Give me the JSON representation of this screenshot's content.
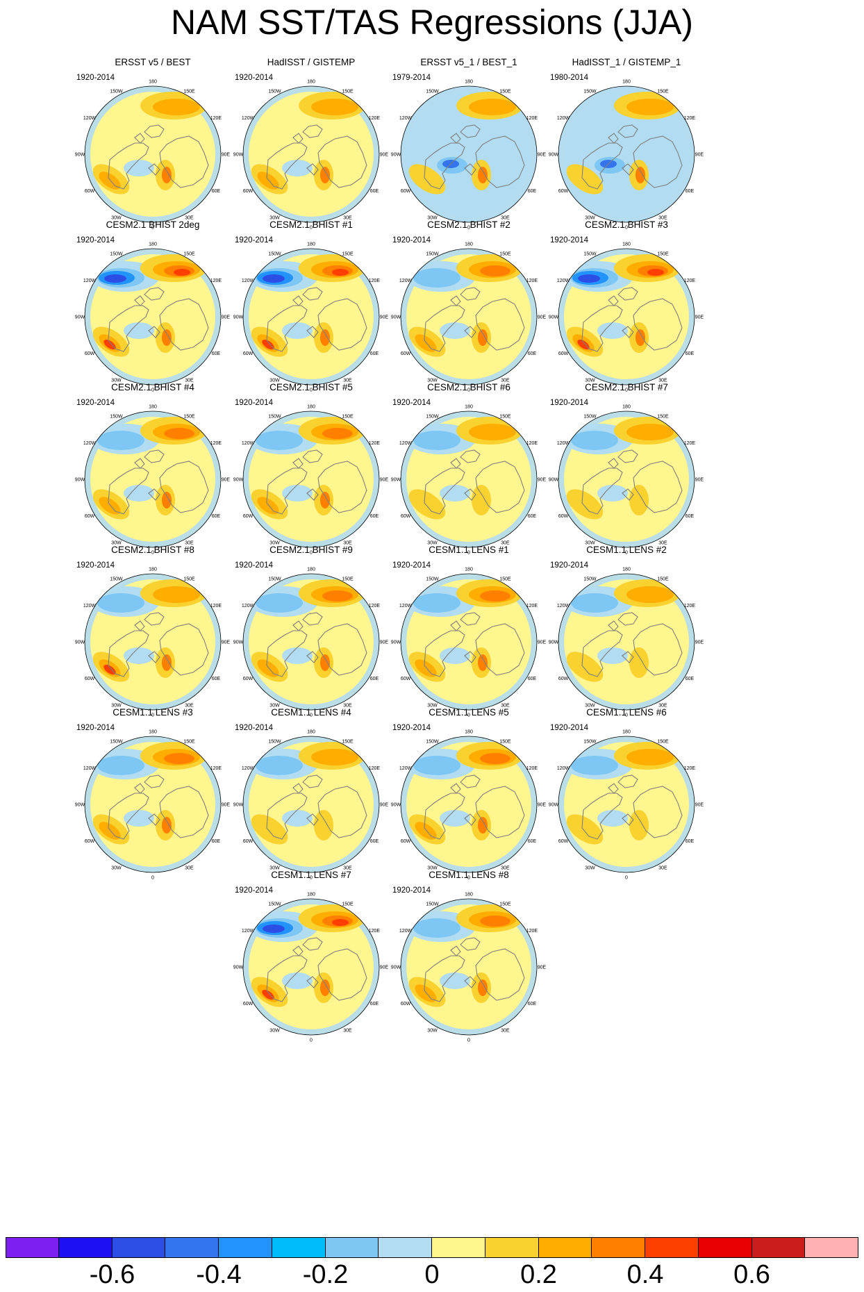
{
  "title": "NAM SST/TAS Regressions (JJA)",
  "colors": {
    "levels": [
      "#7d1ff0",
      "#1d10f5",
      "#2d4ee4",
      "#3474ec",
      "#2193fb",
      "#00bcfb",
      "#7ec7f4",
      "#b2dcf1",
      "#fff68f",
      "#fad22f",
      "#ffad00",
      "#ff7f00",
      "#ff3f00",
      "#e70000",
      "#cc1d1d",
      "#ffb1b1"
    ],
    "land": "#fff68f",
    "ocean_neg": "#b2dcf1",
    "coast": "#7f7f7f"
  },
  "colorbar": {
    "labels": [
      "-0.6",
      "-0.4",
      "-0.2",
      "0",
      "0.2",
      "0.4",
      "0.6"
    ]
  },
  "longitude_labels": [
    "180",
    "150E",
    "120E",
    "90E",
    "60E",
    "30E",
    "0",
    "30W",
    "60W",
    "90W",
    "120W",
    "150W"
  ],
  "panels": [
    {
      "title": "ERSST v5 / BEST",
      "period": "1920-2014"
    },
    {
      "title": "HadISST / GISTEMP",
      "period": "1920-2014"
    },
    {
      "title": "ERSST v5_1 / BEST_1",
      "period": "1979-2014"
    },
    {
      "title": "HadISST_1 / GISTEMP_1",
      "period": "1980-2014"
    },
    {
      "title": "CESM2.1 BHIST 2deg",
      "period": "1920-2014"
    },
    {
      "title": "CESM2.1 BHIST #1",
      "period": "1920-2014"
    },
    {
      "title": "CESM2.1 BHIST #2",
      "period": "1920-2014"
    },
    {
      "title": "CESM2.1 BHIST #3",
      "period": "1920-2014"
    },
    {
      "title": "CESM2.1 BHIST #4",
      "period": "1920-2014"
    },
    {
      "title": "CESM2.1 BHIST #5",
      "period": "1920-2014"
    },
    {
      "title": "CESM2.1 BHIST #6",
      "period": "1920-2014"
    },
    {
      "title": "CESM2.1 BHIST #7",
      "period": "1920-2014"
    },
    {
      "title": "CESM2.1 BHIST #8",
      "period": "1920-2014"
    },
    {
      "title": "CESM2.1 BHIST #9",
      "period": "1920-2014"
    },
    {
      "title": "CESM1.1 LENS #1",
      "period": "1920-2014"
    },
    {
      "title": "CESM1.1 LENS #2",
      "period": "1920-2014"
    },
    {
      "title": "CESM1.1 LENS #3",
      "period": "1920-2014"
    },
    {
      "title": "CESM1.1 LENS #4",
      "period": "1920-2014"
    },
    {
      "title": "CESM1.1 LENS #5",
      "period": "1920-2014"
    },
    {
      "title": "CESM1.1 LENS #6",
      "period": "1920-2014"
    },
    {
      "title": "CESM1.1 LENS #7",
      "period": "1920-2014"
    },
    {
      "title": "CESM1.1 LENS #8",
      "period": "1920-2014"
    }
  ]
}
